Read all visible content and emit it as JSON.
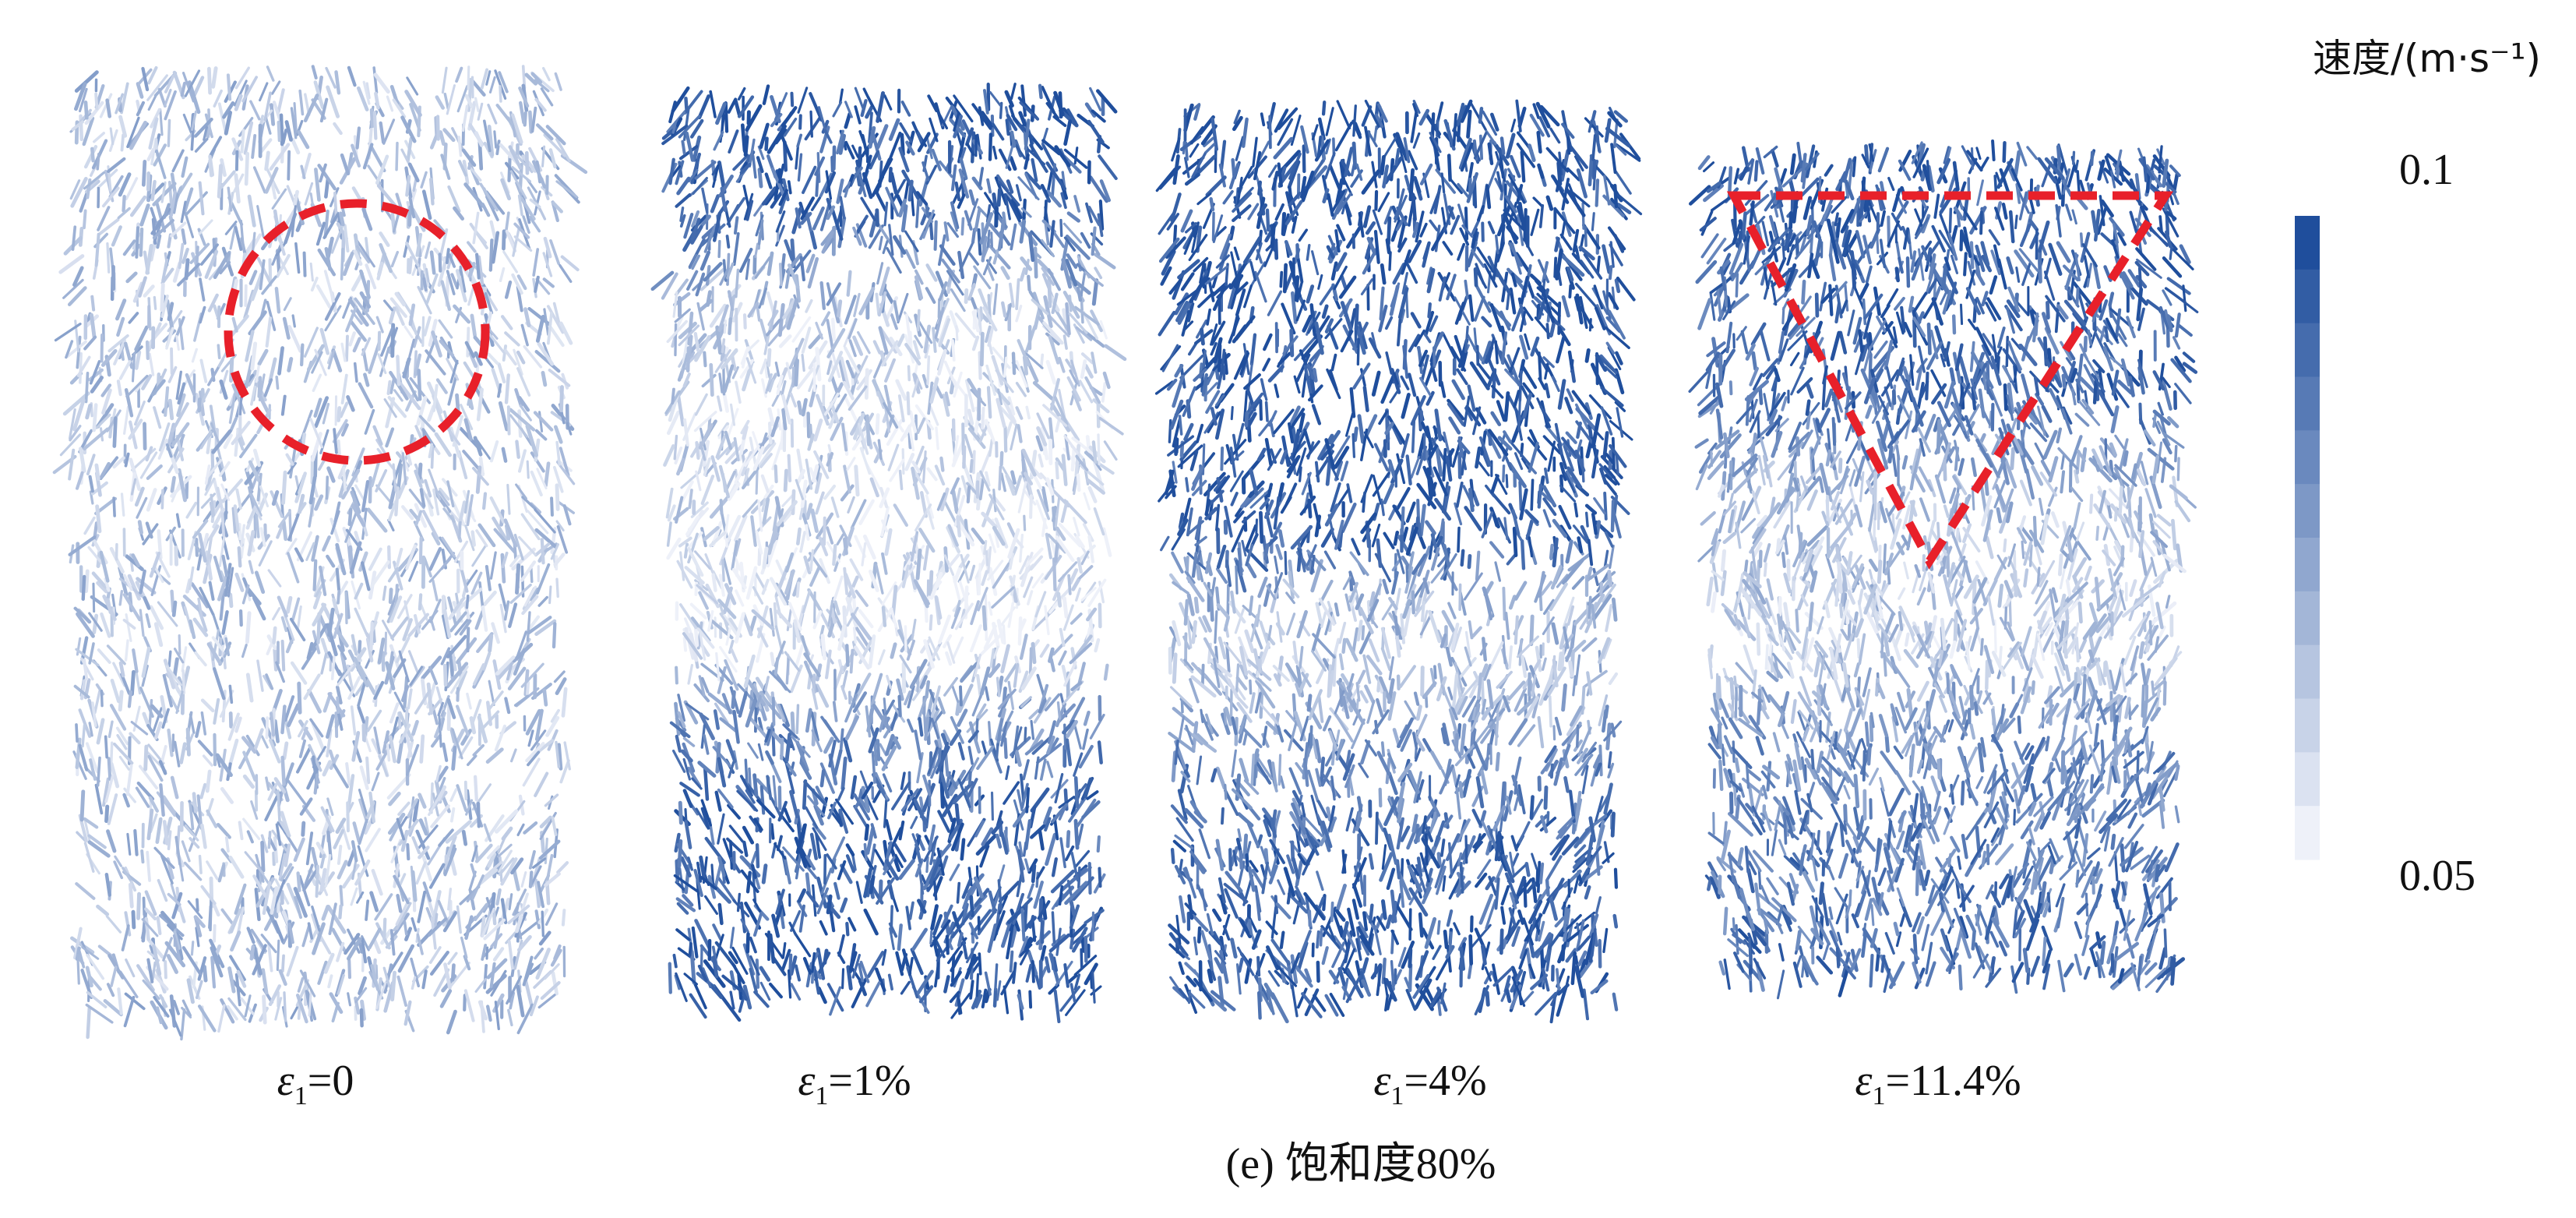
{
  "colorbar": {
    "title": "速度/(m·s⁻¹)",
    "max": 0.1,
    "min": 0.05
  },
  "panels": [
    {
      "symbol": "ε",
      "subscript": "1",
      "value": "=0"
    },
    {
      "symbol": "ε",
      "subscript": "1",
      "value": "=1%"
    },
    {
      "symbol": "ε",
      "subscript": "1",
      "value": "=4%"
    },
    {
      "symbol": "ε",
      "subscript": "1",
      "value": "=11.4%"
    }
  ],
  "caption": "(e) 饱和度80%"
}
